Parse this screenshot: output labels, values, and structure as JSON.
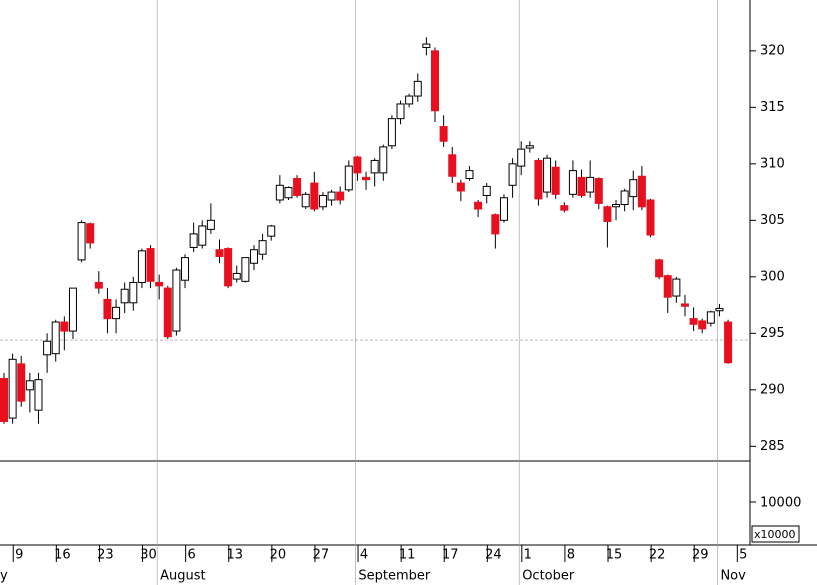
{
  "chart_data": {
    "type": "candlestick",
    "categories": [
      null,
      null,
      "9",
      null,
      null,
      null,
      null,
      "16",
      null,
      null,
      null,
      null,
      "23",
      null,
      null,
      null,
      null,
      "30",
      null,
      null,
      null,
      null,
      "6",
      null,
      null,
      null,
      null,
      "13",
      null,
      null,
      null,
      null,
      "20",
      null,
      null,
      null,
      null,
      "27",
      null,
      null,
      null,
      null,
      "4",
      null,
      null,
      null,
      null,
      "11",
      null,
      null,
      null,
      null,
      "17",
      null,
      null,
      null,
      null,
      "24",
      null,
      null,
      null,
      "1",
      null,
      null,
      null,
      null,
      "8",
      null,
      null,
      null,
      null,
      "15",
      null,
      null,
      null,
      null,
      "22",
      null,
      null,
      null,
      null,
      "29",
      null,
      null,
      null,
      null,
      "5"
    ],
    "months": [
      "y",
      null,
      null,
      null,
      null,
      null,
      null,
      null,
      null,
      null,
      null,
      null,
      null,
      null,
      null,
      null,
      null,
      null,
      "August",
      null,
      null,
      null,
      null,
      null,
      null,
      null,
      null,
      null,
      null,
      null,
      null,
      null,
      null,
      null,
      null,
      null,
      null,
      null,
      null,
      null,
      null,
      "September",
      null,
      null,
      null,
      null,
      null,
      null,
      null,
      null,
      null,
      null,
      null,
      null,
      null,
      null,
      null,
      null,
      null,
      null,
      "October",
      null,
      null,
      null,
      null,
      null,
      null,
      null,
      null,
      null,
      null,
      null,
      null,
      null,
      null,
      null,
      null,
      null,
      null,
      null,
      null,
      null,
      null,
      "Nov",
      null,
      null,
      null
    ],
    "series": [
      {
        "open": [
          291,
          287.5,
          292.3,
          290,
          288.2,
          293.1,
          293.2,
          296,
          295.2,
          301.5,
          304.7,
          299.5,
          298,
          296.3,
          297.7,
          297.7,
          299.5,
          302.5,
          299.5,
          299,
          295.2,
          299.7,
          302.6,
          302.8,
          304.2,
          302.4,
          302.5,
          299.8,
          299.6,
          301.2,
          302,
          303.6,
          306.8,
          307,
          308.7,
          306.2,
          308.3,
          306.2,
          306.8,
          307.5,
          307.7,
          310.6,
          308.8,
          309.2,
          309.2,
          311.6,
          314,
          315.3,
          316,
          320.3,
          320,
          313.3,
          310.8,
          308.3,
          308.7,
          306.6,
          307.2,
          305.5,
          305,
          308.1,
          309.8,
          311.4,
          310.3,
          307.5,
          309.7,
          306.3,
          307.3,
          308.8,
          307.5,
          308.7,
          306.2,
          306.2,
          306.4,
          307.1,
          308.9,
          306.8,
          301.5,
          300.1,
          298.3,
          297.6,
          296.3,
          296.1,
          295.9,
          297,
          296,
          null,
          null
        ],
        "high": [
          291.5,
          293.2,
          293,
          291.5,
          291.5,
          295,
          296.2,
          296.5,
          299,
          305,
          304.8,
          300.5,
          299,
          298,
          299.5,
          300,
          302.5,
          302.8,
          300.2,
          299.2,
          300.8,
          302,
          304.8,
          305,
          306.5,
          303.3,
          302.6,
          301,
          301.7,
          302.8,
          303.8,
          304.6,
          309,
          308,
          309,
          307.5,
          309.3,
          307.5,
          307.7,
          308,
          310.3,
          310.7,
          309.3,
          310.5,
          311.7,
          314.3,
          315.6,
          316.2,
          318,
          321.2,
          320.3,
          314.3,
          311.5,
          308.6,
          309.8,
          306.8,
          308.3,
          305.6,
          307.3,
          310.5,
          312,
          312,
          310.5,
          310.8,
          310.3,
          306.6,
          310.3,
          309.5,
          310.3,
          308.8,
          306.3,
          306.8,
          307.8,
          309.4,
          309.8,
          306.9,
          301.6,
          300.2,
          300,
          298.4,
          297.3,
          296.3,
          297,
          297.6,
          296.2,
          null,
          null
        ],
        "low": [
          287,
          287,
          288.5,
          288,
          287,
          291.5,
          292.5,
          293.5,
          294.5,
          301.3,
          302.5,
          298.5,
          295,
          295,
          296.8,
          297,
          299,
          299,
          298,
          294.5,
          294.8,
          299,
          302.2,
          302.5,
          303.8,
          301.2,
          299,
          299.5,
          299.5,
          300.6,
          301.5,
          303.2,
          306.5,
          306.8,
          307,
          306,
          305.8,
          305.9,
          306.3,
          306.4,
          307.5,
          308.5,
          307.7,
          308,
          308.5,
          311.3,
          313.5,
          315,
          315.5,
          319.6,
          313.7,
          311.5,
          308.3,
          306.7,
          308.5,
          305.3,
          306.5,
          302.5,
          304.8,
          307,
          309,
          311,
          306.3,
          307,
          306.9,
          305.7,
          307,
          307,
          307,
          306,
          302.6,
          305,
          305.8,
          305.9,
          305.9,
          303.5,
          299.8,
          296.8,
          297.7,
          296.5,
          295.2,
          295,
          295.6,
          296.5,
          292.3,
          null,
          null
        ],
        "close": [
          287.2,
          292.7,
          289,
          290.8,
          290.9,
          294.3,
          296,
          295.2,
          299,
          304.8,
          303,
          299,
          296.3,
          297.3,
          298.9,
          299.5,
          302.3,
          299.6,
          299.2,
          294.7,
          300.6,
          301.7,
          303.8,
          304.5,
          305,
          301.8,
          299.2,
          300.3,
          301.7,
          302.4,
          303.2,
          304.5,
          308.1,
          307.9,
          307.2,
          307.3,
          306,
          307.2,
          307.5,
          306.8,
          309.8,
          309.2,
          308.6,
          310.3,
          311.5,
          314,
          315.3,
          316,
          317.3,
          320.6,
          314.7,
          312,
          308.9,
          307.6,
          309.4,
          306,
          308,
          303.8,
          307,
          310,
          311.3,
          311.6,
          306.9,
          310.5,
          307.3,
          305.9,
          309.4,
          307.2,
          308.8,
          306.5,
          304.9,
          306.4,
          307.6,
          308.6,
          306.2,
          303.7,
          300,
          298.2,
          299.8,
          297.4,
          295.8,
          295.4,
          296.9,
          297.2,
          292.4,
          null,
          null
        ]
      }
    ],
    "up_color": "#ffffff",
    "down_color": "#e8101e",
    "ylim": [
      283.7,
      324.5
    ],
    "yticks": [
      285,
      290,
      295,
      300,
      305,
      310,
      315,
      320
    ],
    "reference_line": 294.4,
    "volume_ticks": [
      "10000"
    ],
    "volume_unit": "x10000"
  }
}
